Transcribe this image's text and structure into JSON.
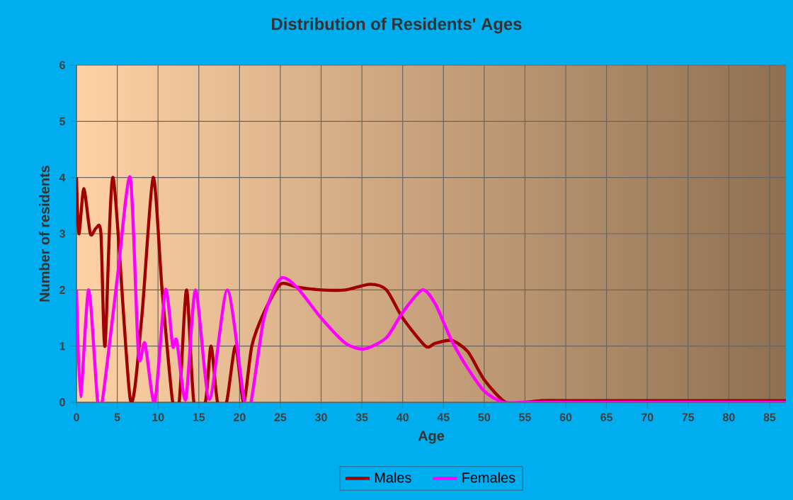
{
  "chart_data": {
    "type": "line",
    "title": "Distribution of Residents' Ages",
    "xlabel": "Age",
    "ylabel": "Number of residents",
    "xlim": [
      0,
      87
    ],
    "ylim": [
      0,
      6
    ],
    "xticks": [
      0,
      5,
      10,
      15,
      20,
      25,
      30,
      35,
      40,
      45,
      50,
      55,
      60,
      65,
      70,
      75,
      80,
      85
    ],
    "yticks": [
      0,
      1,
      2,
      3,
      4,
      5,
      6
    ],
    "grid": true,
    "legend": "bottom",
    "line_style": "solid",
    "marker": "none",
    "series": [
      {
        "name": "Males",
        "color": "#a00000",
        "x": [
          0,
          0.3,
          0.9,
          1.7,
          2.4,
          3,
          3.5,
          4.5,
          6.6,
          8,
          9.4,
          10.5,
          11.8,
          12.6,
          13.5,
          14.4,
          15.8,
          16.5,
          17.3,
          18.4,
          19.5,
          20.5,
          21.5,
          23,
          25,
          27,
          30,
          33,
          36,
          38,
          40,
          42.8,
          44,
          46,
          48,
          50,
          52.6,
          55,
          57,
          60,
          70,
          80,
          87
        ],
        "values": [
          4,
          3,
          3.8,
          3,
          3.1,
          3,
          1,
          4,
          0.05,
          1.5,
          4,
          2,
          0,
          0,
          2,
          0,
          0,
          1,
          0,
          0,
          1,
          0,
          1,
          1.6,
          2.1,
          2.05,
          2,
          2,
          2.1,
          2,
          1.5,
          1,
          1.05,
          1.1,
          0.9,
          0.4,
          0,
          0,
          0.03,
          0.03,
          0.03,
          0.03,
          0.03
        ]
      },
      {
        "name": "Females",
        "color": "#ff00ff",
        "x": [
          0,
          0.5,
          1.5,
          2.6,
          3.2,
          5,
          6.6,
          7.6,
          8.4,
          9.6,
          10.9,
          11.8,
          12.3,
          13.4,
          14.6,
          16.3,
          18.5,
          20.6,
          21.4,
          23,
          25,
          27,
          30,
          33,
          35.3,
          38,
          40,
          42.4,
          44,
          46,
          48,
          50,
          52.3,
          55,
          60,
          70,
          80,
          87
        ],
        "values": [
          2,
          0.1,
          2,
          0,
          0.05,
          2.2,
          4,
          0.85,
          1.05,
          0,
          2,
          1,
          1.1,
          0.05,
          2,
          0.05,
          2,
          0,
          0,
          1.5,
          2.2,
          2.05,
          1.5,
          1.05,
          0.95,
          1.15,
          1.6,
          2,
          1.75,
          1.1,
          0.6,
          0.2,
          0,
          0,
          0,
          0,
          0,
          0
        ]
      }
    ]
  }
}
